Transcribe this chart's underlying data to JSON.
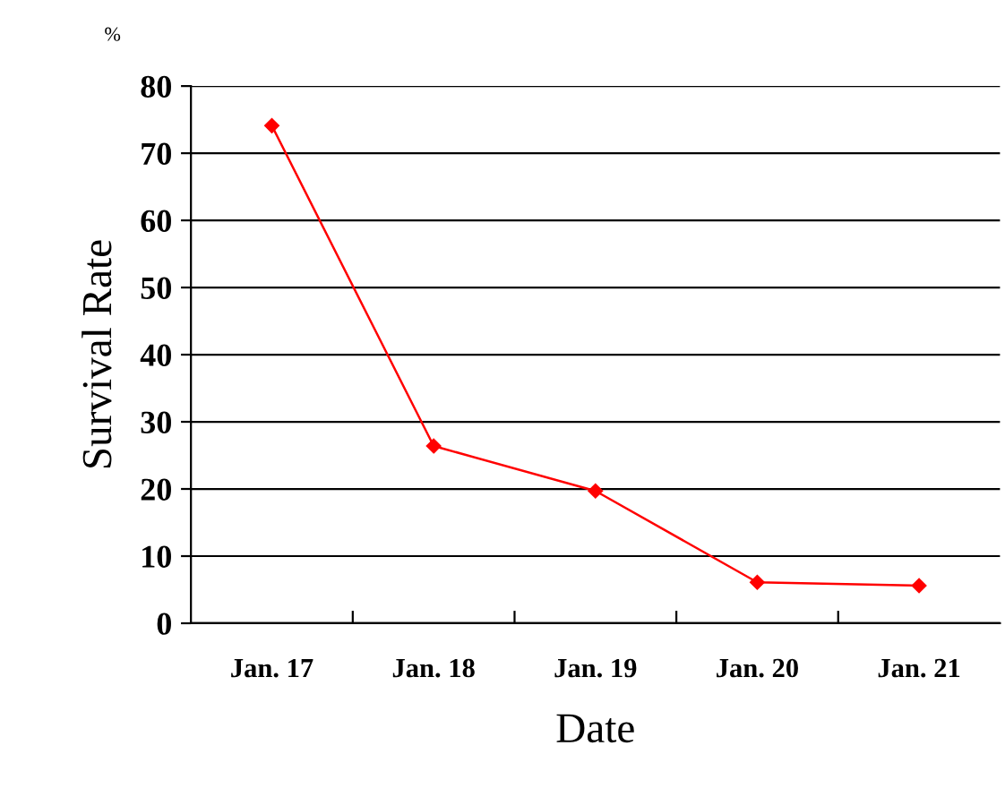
{
  "chart_data": {
    "type": "line",
    "xlabel": "Date",
    "ylabel": "Survival Rate",
    "annotations": [
      "%"
    ],
    "categories": [
      "Jan. 17",
      "Jan. 18",
      "Jan. 19",
      "Jan. 20",
      "Jan. 21"
    ],
    "series": [
      {
        "color": "#ff0000",
        "values": [
          74.1,
          26.4,
          19.7,
          6.1,
          5.6
        ]
      }
    ],
    "ylim": [
      0,
      80
    ],
    "yticks": [
      0,
      10,
      20,
      30,
      40,
      50,
      60,
      70,
      80
    ],
    "grid": "y",
    "marker": "diamond",
    "line_style": "solid",
    "legend": false
  }
}
